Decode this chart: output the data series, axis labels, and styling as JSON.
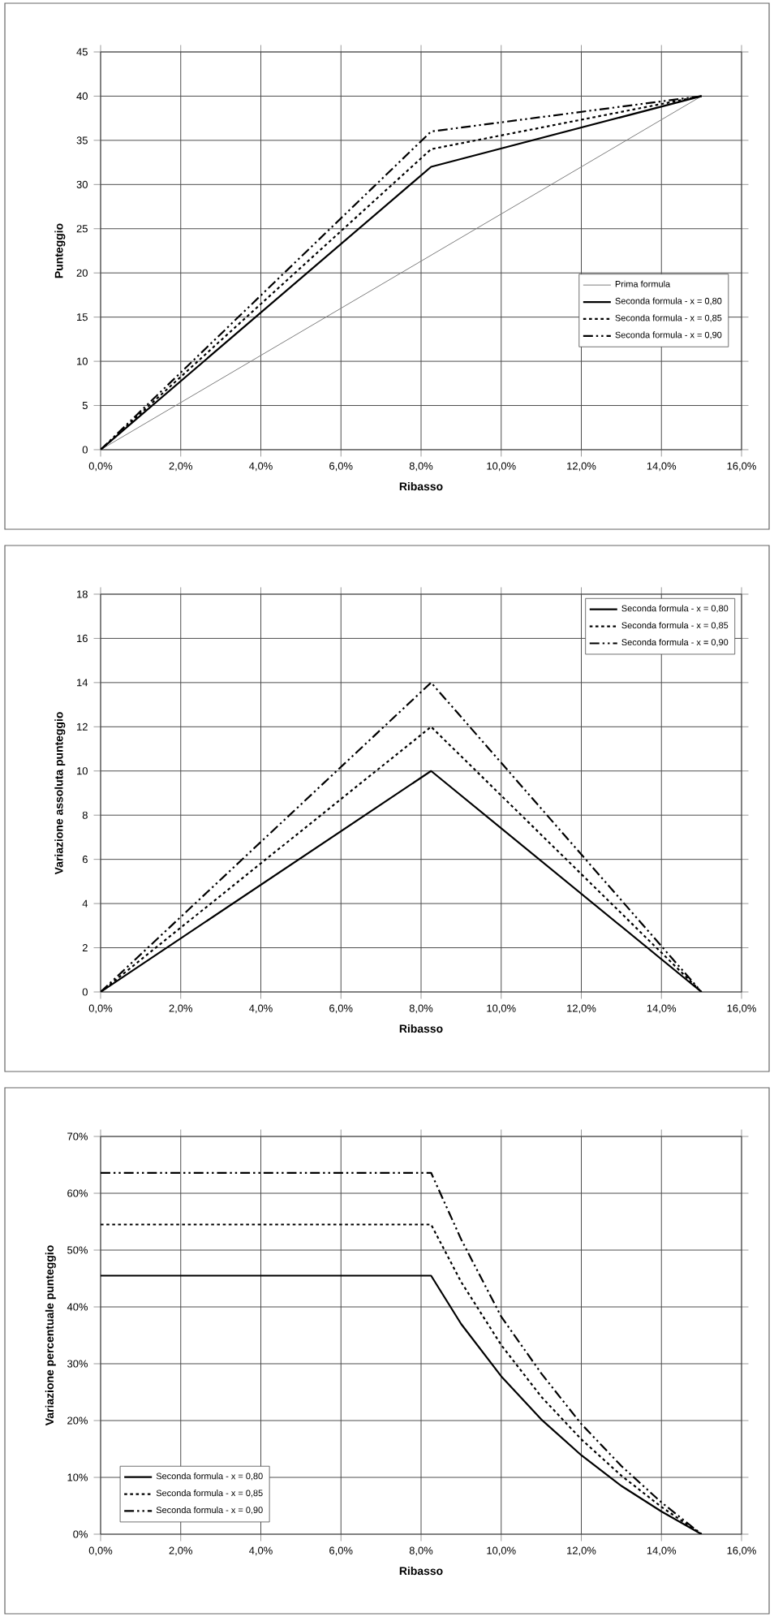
{
  "chart_data": [
    {
      "type": "line",
      "xlabel": "Ribasso",
      "ylabel": "Punteggio",
      "xlim": [
        0,
        16
      ],
      "ylim": [
        0,
        45
      ],
      "xticks": [
        {
          "value": 0,
          "label": "0,0%"
        },
        {
          "value": 2,
          "label": "2,0%"
        },
        {
          "value": 4,
          "label": "4,0%"
        },
        {
          "value": 6,
          "label": "6,0%"
        },
        {
          "value": 8,
          "label": "8,0%"
        },
        {
          "value": 10,
          "label": "10,0%"
        },
        {
          "value": 12,
          "label": "12,0%"
        },
        {
          "value": 14,
          "label": "14,0%"
        },
        {
          "value": 16,
          "label": "16,0%"
        }
      ],
      "yticks": [
        0,
        5,
        10,
        15,
        20,
        25,
        30,
        35,
        40,
        45
      ],
      "grid": true,
      "legend": "right",
      "series": [
        {
          "name": "Prima formula",
          "color": "#808080",
          "line_style": "solid",
          "x": [
            0,
            15
          ],
          "values": [
            0,
            40
          ]
        },
        {
          "name": "Seconda formula  -  x = 0,80",
          "color": "#000000",
          "line_style": "solid",
          "x": [
            0,
            8.25,
            15
          ],
          "values": [
            0,
            32,
            40
          ]
        },
        {
          "name": "Seconda formula  -  x = 0,85",
          "color": "#000000",
          "line_style": "dotted",
          "x": [
            0,
            8.25,
            15
          ],
          "values": [
            0,
            34,
            40
          ]
        },
        {
          "name": "Seconda formula  -  x = 0,90",
          "color": "#000000",
          "line_style": "dashed",
          "x": [
            0,
            8.25,
            15
          ],
          "values": [
            0,
            36,
            40
          ]
        }
      ]
    },
    {
      "type": "line",
      "xlabel": "Ribasso",
      "ylabel": "Variazione assoluta punteggio",
      "xlim": [
        0,
        16
      ],
      "ylim": [
        0,
        18
      ],
      "xticks": [
        {
          "value": 0,
          "label": "0,0%"
        },
        {
          "value": 2,
          "label": "2,0%"
        },
        {
          "value": 4,
          "label": "4,0%"
        },
        {
          "value": 6,
          "label": "6,0%"
        },
        {
          "value": 8,
          "label": "8,0%"
        },
        {
          "value": 10,
          "label": "10,0%"
        },
        {
          "value": 12,
          "label": "12,0%"
        },
        {
          "value": 14,
          "label": "14,0%"
        },
        {
          "value": 16,
          "label": "16,0%"
        }
      ],
      "yticks": [
        0,
        2,
        4,
        6,
        8,
        10,
        12,
        14,
        16,
        18
      ],
      "grid": true,
      "legend": "top right",
      "series": [
        {
          "name": "Seconda formula  -  x = 0,80",
          "color": "#000000",
          "line_style": "solid",
          "x": [
            0,
            8.25,
            15
          ],
          "values": [
            0,
            10,
            0
          ]
        },
        {
          "name": "Seconda formula  -  x = 0,85",
          "color": "#000000",
          "line_style": "dotted",
          "x": [
            0,
            8.25,
            15
          ],
          "values": [
            0,
            12,
            0
          ]
        },
        {
          "name": "Seconda formula  -  x = 0,90",
          "color": "#000000",
          "line_style": "dashed",
          "x": [
            0,
            8.25,
            15
          ],
          "values": [
            0,
            14,
            0
          ]
        }
      ]
    },
    {
      "type": "line",
      "xlabel": "Ribasso",
      "ylabel": "Variazione percentuale punteggio",
      "xlim": [
        0,
        16
      ],
      "ylim": [
        0,
        70
      ],
      "xticks": [
        {
          "value": 0,
          "label": "0,0%"
        },
        {
          "value": 2,
          "label": "2,0%"
        },
        {
          "value": 4,
          "label": "4,0%"
        },
        {
          "value": 6,
          "label": "6,0%"
        },
        {
          "value": 8,
          "label": "8,0%"
        },
        {
          "value": 10,
          "label": "10,0%"
        },
        {
          "value": 12,
          "label": "12,0%"
        },
        {
          "value": 14,
          "label": "14,0%"
        },
        {
          "value": 16,
          "label": "16,0%"
        }
      ],
      "yticks": [
        {
          "value": 0,
          "label": "0%"
        },
        {
          "value": 10,
          "label": "10%"
        },
        {
          "value": 20,
          "label": "20%"
        },
        {
          "value": 30,
          "label": "30%"
        },
        {
          "value": 40,
          "label": "40%"
        },
        {
          "value": 50,
          "label": "50%"
        },
        {
          "value": 60,
          "label": "60%"
        },
        {
          "value": 70,
          "label": "70%"
        }
      ],
      "grid": true,
      "legend": "bottom left",
      "series": [
        {
          "name": "Seconda formula  -  x = 0,80",
          "color": "#000000",
          "line_style": "solid",
          "x": [
            0,
            8.25,
            9,
            10,
            11,
            12,
            13,
            14,
            15
          ],
          "values": [
            45.5,
            45.5,
            37.0,
            27.8,
            20.2,
            13.9,
            8.5,
            4.0,
            0
          ]
        },
        {
          "name": "Seconda formula  -  x = 0,85",
          "color": "#000000",
          "line_style": "dotted",
          "x": [
            0,
            8.25,
            9,
            10,
            11,
            12,
            13,
            14,
            15
          ],
          "values": [
            54.5,
            54.5,
            44.4,
            33.3,
            24.2,
            16.7,
            10.3,
            4.8,
            0
          ]
        },
        {
          "name": "Seconda formula  -  x = 0,90",
          "color": "#000000",
          "line_style": "dashed",
          "x": [
            0,
            8.25,
            9,
            10,
            11,
            12,
            13,
            14,
            15
          ],
          "values": [
            63.6,
            63.6,
            51.9,
            38.3,
            28.3,
            19.4,
            12.0,
            5.6,
            0
          ]
        }
      ]
    }
  ]
}
